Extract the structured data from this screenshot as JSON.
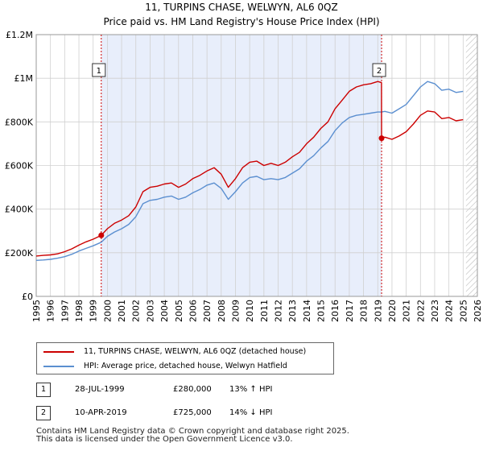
{
  "header": {
    "title": "11, TURPINS CHASE, WELWYN, AL6 0QZ",
    "subtitle": "Price paid vs. HM Land Registry's House Price Index (HPI)"
  },
  "colors": {
    "property": "#cc0000",
    "hpi": "#5b8fd0",
    "shade": "#e8eefb",
    "grid": "#d0d0d0"
  },
  "chart_data": {
    "type": "line",
    "title": "11, TURPINS CHASE, WELWYN, AL6 0QZ",
    "subtitle": "Price paid vs. HM Land Registry's House Price Index (HPI)",
    "xlim": [
      1995,
      2026
    ],
    "ylim": [
      0,
      1200000
    ],
    "x_ticks": [
      1995,
      1996,
      1997,
      1998,
      1999,
      2000,
      2001,
      2002,
      2003,
      2004,
      2005,
      2006,
      2007,
      2008,
      2009,
      2010,
      2011,
      2012,
      2013,
      2014,
      2015,
      2016,
      2017,
      2018,
      2019,
      2020,
      2021,
      2022,
      2023,
      2024,
      2025,
      2026
    ],
    "y_ticks": [
      {
        "value": 0,
        "label": "£0"
      },
      {
        "value": 200000,
        "label": "£200K"
      },
      {
        "value": 400000,
        "label": "£400K"
      },
      {
        "value": 600000,
        "label": "£600K"
      },
      {
        "value": 800000,
        "label": "£800K"
      },
      {
        "value": 1000000,
        "label": "£1M"
      },
      {
        "value": 1200000,
        "label": "£1.2M"
      }
    ],
    "grid": true,
    "shaded_range": [
      1999.57,
      2019.27
    ],
    "hatched_from": 2025.2,
    "series": [
      {
        "name": "11, TURPINS CHASE, WELWYN, AL6 0QZ (detached house)",
        "color": "#cc0000",
        "x": [
          1995.0,
          1995.5,
          1996.0,
          1996.5,
          1997.0,
          1997.5,
          1998.0,
          1998.5,
          1999.0,
          1999.57,
          2000.0,
          2000.5,
          2001.0,
          2001.5,
          2002.0,
          2002.5,
          2003.0,
          2003.5,
          2004.0,
          2004.5,
          2005.0,
          2005.5,
          2006.0,
          2006.5,
          2007.0,
          2007.5,
          2008.0,
          2008.5,
          2009.0,
          2009.5,
          2010.0,
          2010.5,
          2011.0,
          2011.5,
          2012.0,
          2012.5,
          2013.0,
          2013.5,
          2014.0,
          2014.5,
          2015.0,
          2015.5,
          2016.0,
          2016.5,
          2017.0,
          2017.5,
          2018.0,
          2018.5,
          2019.0,
          2019.26,
          2019.27,
          2019.5,
          2020.0,
          2020.5,
          2021.0,
          2021.5,
          2022.0,
          2022.5,
          2023.0,
          2023.5,
          2024.0,
          2024.5,
          2025.0
        ],
        "y": [
          185000,
          188000,
          190000,
          195000,
          205000,
          218000,
          235000,
          250000,
          262000,
          280000,
          310000,
          335000,
          350000,
          370000,
          410000,
          480000,
          500000,
          505000,
          515000,
          520000,
          500000,
          515000,
          540000,
          555000,
          575000,
          590000,
          560000,
          500000,
          540000,
          590000,
          615000,
          620000,
          600000,
          610000,
          600000,
          615000,
          640000,
          660000,
          700000,
          730000,
          770000,
          800000,
          860000,
          900000,
          940000,
          960000,
          970000,
          975000,
          985000,
          980000,
          725000,
          730000,
          720000,
          735000,
          755000,
          790000,
          830000,
          850000,
          845000,
          815000,
          820000,
          805000,
          810000
        ]
      },
      {
        "name": "HPI: Average price, detached house, Welwyn Hatfield",
        "color": "#5b8fd0",
        "x": [
          1995.0,
          1995.5,
          1996.0,
          1996.5,
          1997.0,
          1997.5,
          1998.0,
          1998.5,
          1999.0,
          1999.57,
          2000.0,
          2000.5,
          2001.0,
          2001.5,
          2002.0,
          2002.5,
          2003.0,
          2003.5,
          2004.0,
          2004.5,
          2005.0,
          2005.5,
          2006.0,
          2006.5,
          2007.0,
          2007.5,
          2008.0,
          2008.5,
          2009.0,
          2009.5,
          2010.0,
          2010.5,
          2011.0,
          2011.5,
          2012.0,
          2012.5,
          2013.0,
          2013.5,
          2014.0,
          2014.5,
          2015.0,
          2015.5,
          2016.0,
          2016.5,
          2017.0,
          2017.5,
          2018.0,
          2018.5,
          2019.0,
          2019.27,
          2019.5,
          2020.0,
          2020.5,
          2021.0,
          2021.5,
          2022.0,
          2022.5,
          2023.0,
          2023.5,
          2024.0,
          2024.5,
          2025.0
        ],
        "y": [
          165000,
          167000,
          170000,
          175000,
          182000,
          193000,
          208000,
          220000,
          232000,
          248000,
          275000,
          295000,
          310000,
          330000,
          365000,
          425000,
          440000,
          445000,
          455000,
          460000,
          445000,
          455000,
          475000,
          490000,
          510000,
          520000,
          495000,
          445000,
          480000,
          520000,
          545000,
          550000,
          535000,
          540000,
          535000,
          545000,
          565000,
          585000,
          620000,
          645000,
          680000,
          710000,
          760000,
          795000,
          820000,
          830000,
          835000,
          840000,
          845000,
          845000,
          848000,
          840000,
          860000,
          880000,
          920000,
          960000,
          985000,
          975000,
          945000,
          950000,
          935000,
          940000
        ]
      }
    ],
    "markers": [
      {
        "label": "1",
        "x": 1999.57,
        "y": 280000
      },
      {
        "label": "2",
        "x": 2019.27,
        "y": 725000
      }
    ]
  },
  "legend": {
    "items": [
      {
        "label": "11, TURPINS CHASE, WELWYN, AL6 0QZ (detached house)",
        "color": "#cc0000"
      },
      {
        "label": "HPI: Average price, detached house, Welwyn Hatfield",
        "color": "#5b8fd0"
      }
    ]
  },
  "transactions": [
    {
      "badge": "1",
      "date": "28-JUL-1999",
      "price": "£280,000",
      "hpi": "13% ↑ HPI"
    },
    {
      "badge": "2",
      "date": "10-APR-2019",
      "price": "£725,000",
      "hpi": "14% ↓ HPI"
    }
  ],
  "footer": {
    "line1": "Contains HM Land Registry data © Crown copyright and database right 2025.",
    "line2": "This data is licensed under the Open Government Licence v3.0."
  }
}
